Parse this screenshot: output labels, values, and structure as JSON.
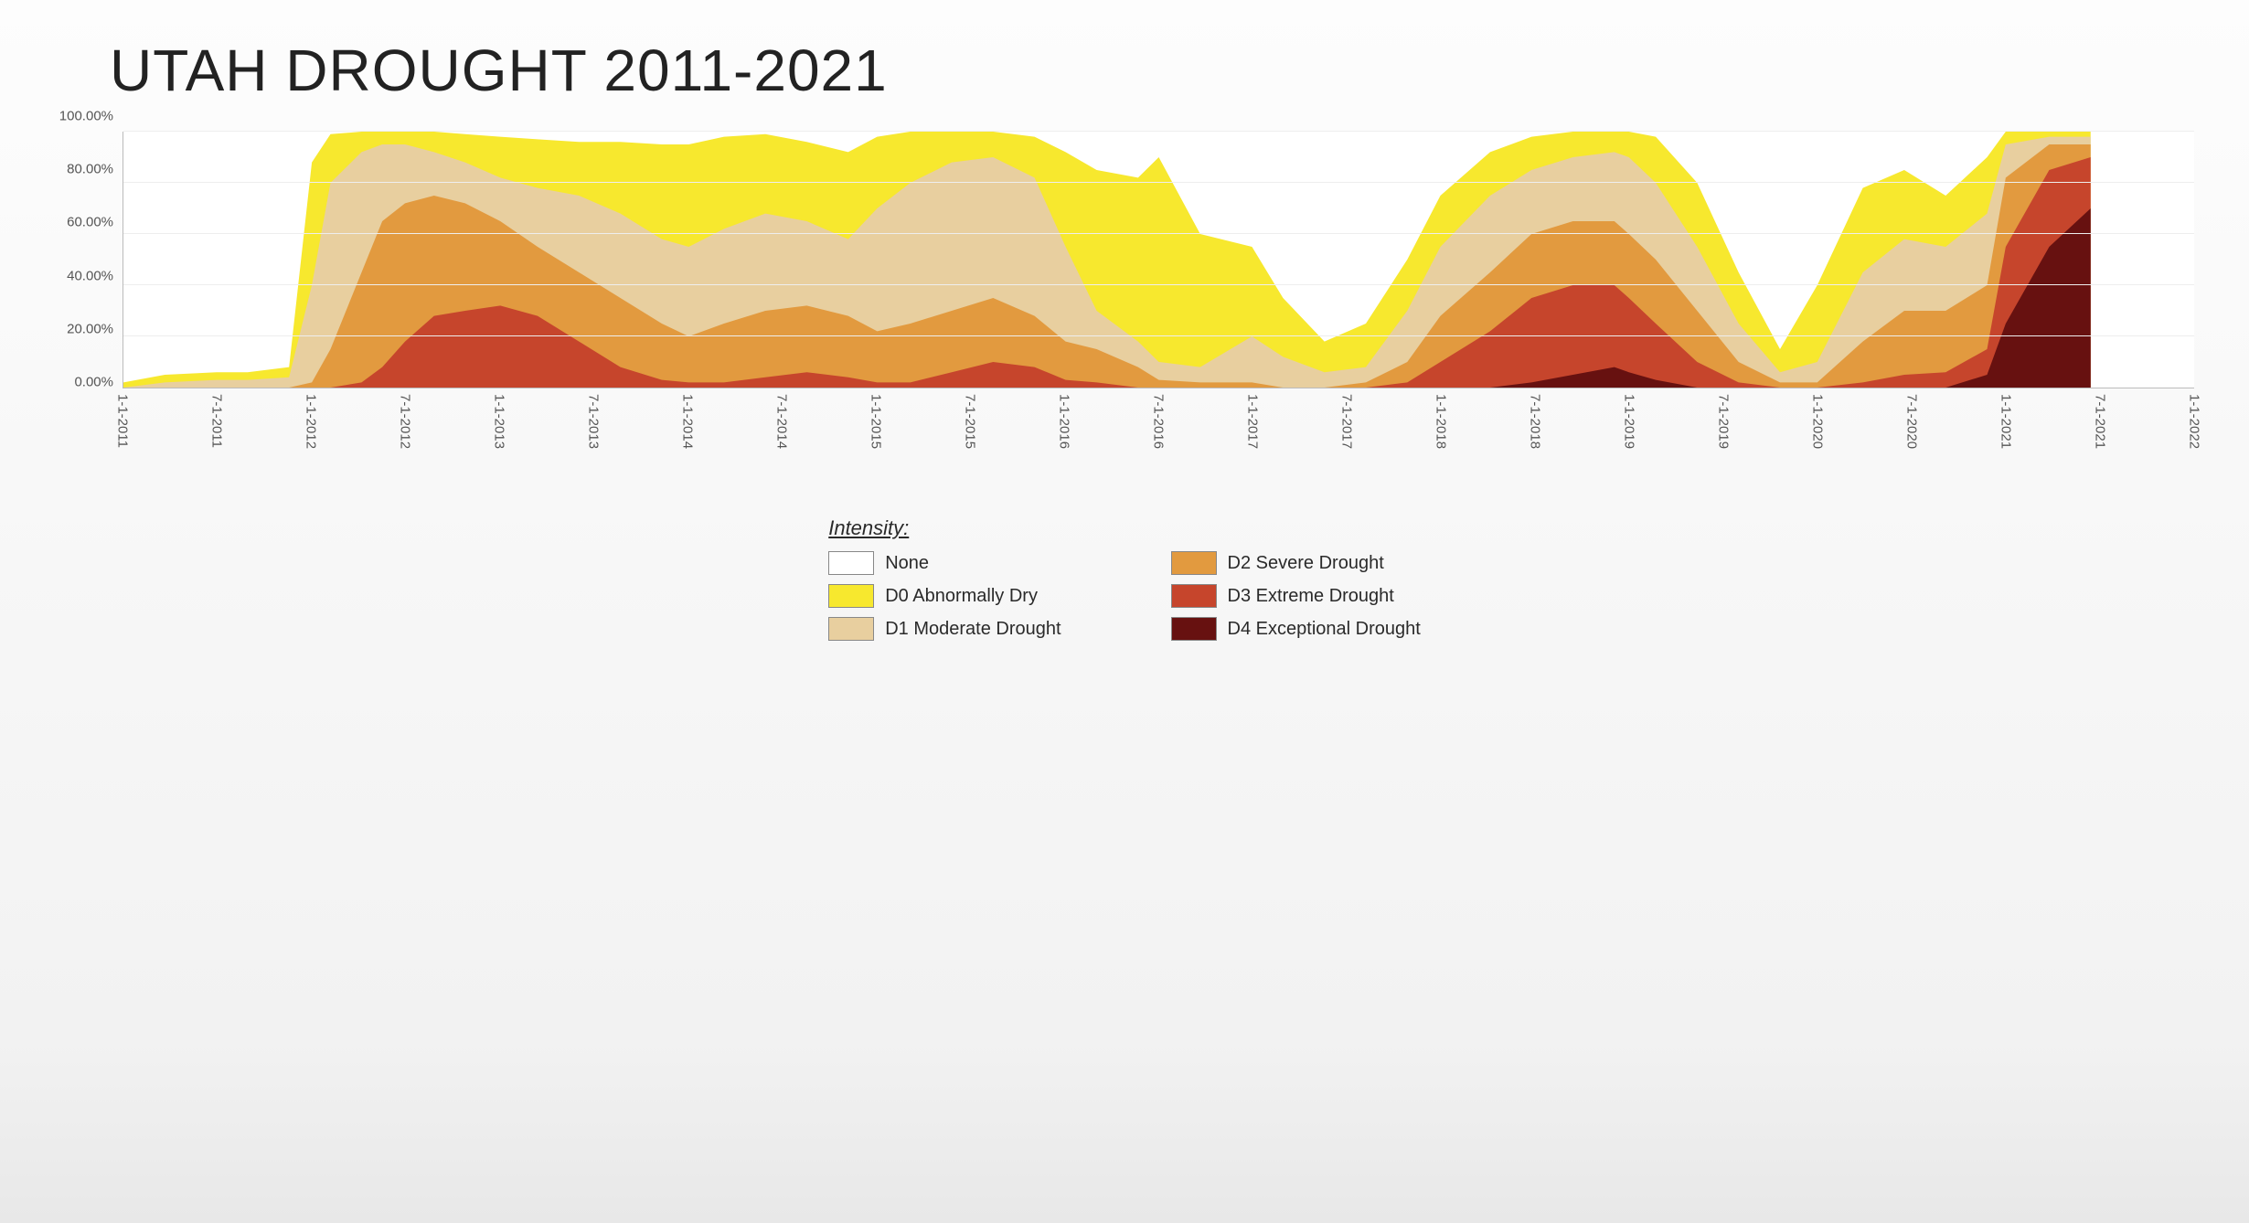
{
  "title": "UTAH DROUGHT 2011-2021",
  "chart": {
    "type": "area",
    "background_color": "#ffffff",
    "grid_color": "#eeeeee",
    "axis_color": "#bbbbbb",
    "title_fontsize": 64,
    "axis_label_fontsize": 15,
    "ylim": [
      0,
      100
    ],
    "ytick_step": 20,
    "y_labels": [
      "0.00%",
      "20.00%",
      "40.00%",
      "60.00%",
      "80.00%",
      "100.00%"
    ],
    "x_labels": [
      "1-1-2011",
      "7-1-2011",
      "1-1-2012",
      "7-1-2012",
      "1-1-2013",
      "7-1-2013",
      "1-1-2014",
      "7-1-2014",
      "1-1-2015",
      "7-1-2015",
      "1-1-2016",
      "7-1-2016",
      "1-1-2017",
      "7-1-2017",
      "1-1-2018",
      "7-1-2018",
      "1-1-2019",
      "7-1-2019",
      "1-1-2020",
      "7-1-2020",
      "1-1-2021",
      "7-1-2021",
      "1-1-2022"
    ],
    "series": [
      {
        "id": "D4",
        "label": "D4 Exceptional Drought",
        "color": "#671110"
      },
      {
        "id": "D3",
        "label": "D3 Extreme Drought",
        "color": "#c6452c"
      },
      {
        "id": "D2",
        "label": "D2 Severe Drought",
        "color": "#e29a3f"
      },
      {
        "id": "D1",
        "label": "D1 Moderate Drought",
        "color": "#e8cf9f"
      },
      {
        "id": "D0",
        "label": "D0 Abnormally Dry",
        "color": "#f7e82e"
      },
      {
        "id": "None",
        "label": "None",
        "color": "#ffffff"
      }
    ],
    "time": [
      0.0,
      0.02,
      0.045,
      0.06,
      0.08,
      0.091,
      0.1,
      0.115,
      0.125,
      0.136,
      0.15,
      0.165,
      0.182,
      0.2,
      0.22,
      0.24,
      0.26,
      0.273,
      0.29,
      0.31,
      0.33,
      0.35,
      0.364,
      0.38,
      0.4,
      0.42,
      0.44,
      0.455,
      0.47,
      0.49,
      0.5,
      0.52,
      0.545,
      0.56,
      0.58,
      0.6,
      0.62,
      0.636,
      0.66,
      0.68,
      0.7,
      0.72,
      0.727,
      0.74,
      0.76,
      0.78,
      0.8,
      0.818,
      0.84,
      0.86,
      0.88,
      0.9,
      0.909,
      0.93,
      0.95
    ],
    "data": {
      "D4": [
        0,
        0,
        0,
        0,
        0,
        0,
        0,
        0,
        0,
        0,
        0,
        0,
        0,
        0,
        0,
        0,
        0,
        0,
        0,
        0,
        0,
        0,
        0,
        0,
        0,
        0,
        0,
        0,
        0,
        0,
        0,
        0,
        0,
        0,
        0,
        0,
        0,
        0,
        0,
        2,
        5,
        8,
        6,
        3,
        0,
        0,
        0,
        0,
        0,
        0,
        0,
        5,
        25,
        55,
        70
      ],
      "D3": [
        0,
        0,
        0,
        0,
        0,
        0,
        0,
        2,
        8,
        18,
        28,
        30,
        32,
        28,
        18,
        8,
        3,
        2,
        2,
        4,
        6,
        4,
        2,
        2,
        6,
        10,
        8,
        3,
        2,
        0,
        0,
        0,
        0,
        0,
        0,
        0,
        2,
        10,
        22,
        35,
        40,
        40,
        35,
        25,
        10,
        2,
        0,
        0,
        2,
        5,
        6,
        15,
        55,
        85,
        90
      ],
      "D2": [
        0,
        0,
        0,
        0,
        0,
        2,
        15,
        45,
        65,
        72,
        75,
        72,
        65,
        55,
        45,
        35,
        25,
        20,
        25,
        30,
        32,
        28,
        22,
        25,
        30,
        35,
        28,
        18,
        15,
        8,
        3,
        2,
        2,
        0,
        0,
        2,
        10,
        28,
        45,
        60,
        65,
        65,
        60,
        50,
        30,
        10,
        2,
        2,
        18,
        30,
        30,
        40,
        82,
        95,
        95
      ],
      "D1": [
        0,
        2,
        3,
        3,
        4,
        40,
        80,
        92,
        95,
        95,
        92,
        88,
        82,
        78,
        75,
        68,
        58,
        55,
        62,
        68,
        65,
        58,
        70,
        80,
        88,
        90,
        82,
        55,
        30,
        18,
        10,
        8,
        20,
        12,
        6,
        8,
        30,
        55,
        75,
        85,
        90,
        92,
        90,
        80,
        55,
        25,
        6,
        10,
        45,
        58,
        55,
        68,
        95,
        98,
        98
      ],
      "D0": [
        2,
        5,
        6,
        6,
        8,
        88,
        99,
        100,
        100,
        100,
        100,
        99,
        98,
        97,
        96,
        96,
        95,
        95,
        98,
        99,
        96,
        92,
        98,
        100,
        100,
        100,
        98,
        92,
        85,
        82,
        90,
        60,
        55,
        35,
        18,
        25,
        50,
        75,
        92,
        98,
        100,
        100,
        100,
        98,
        80,
        45,
        15,
        40,
        78,
        85,
        75,
        90,
        100,
        100,
        100
      ]
    }
  },
  "legend": {
    "title": "Intensity:",
    "title_fontsize": 22,
    "item_fontsize": 20,
    "swatch_border": "#888888",
    "items_col1": [
      {
        "color": "#ffffff",
        "label": "None"
      },
      {
        "color": "#f7e82e",
        "label": "D0 Abnormally Dry"
      },
      {
        "color": "#e8cf9f",
        "label": "D1 Moderate Drought"
      }
    ],
    "items_col2": [
      {
        "color": "#e29a3f",
        "label": "D2 Severe Drought"
      },
      {
        "color": "#c6452c",
        "label": "D3 Extreme Drought"
      },
      {
        "color": "#671110",
        "label": "D4 Exceptional Drought"
      }
    ]
  }
}
